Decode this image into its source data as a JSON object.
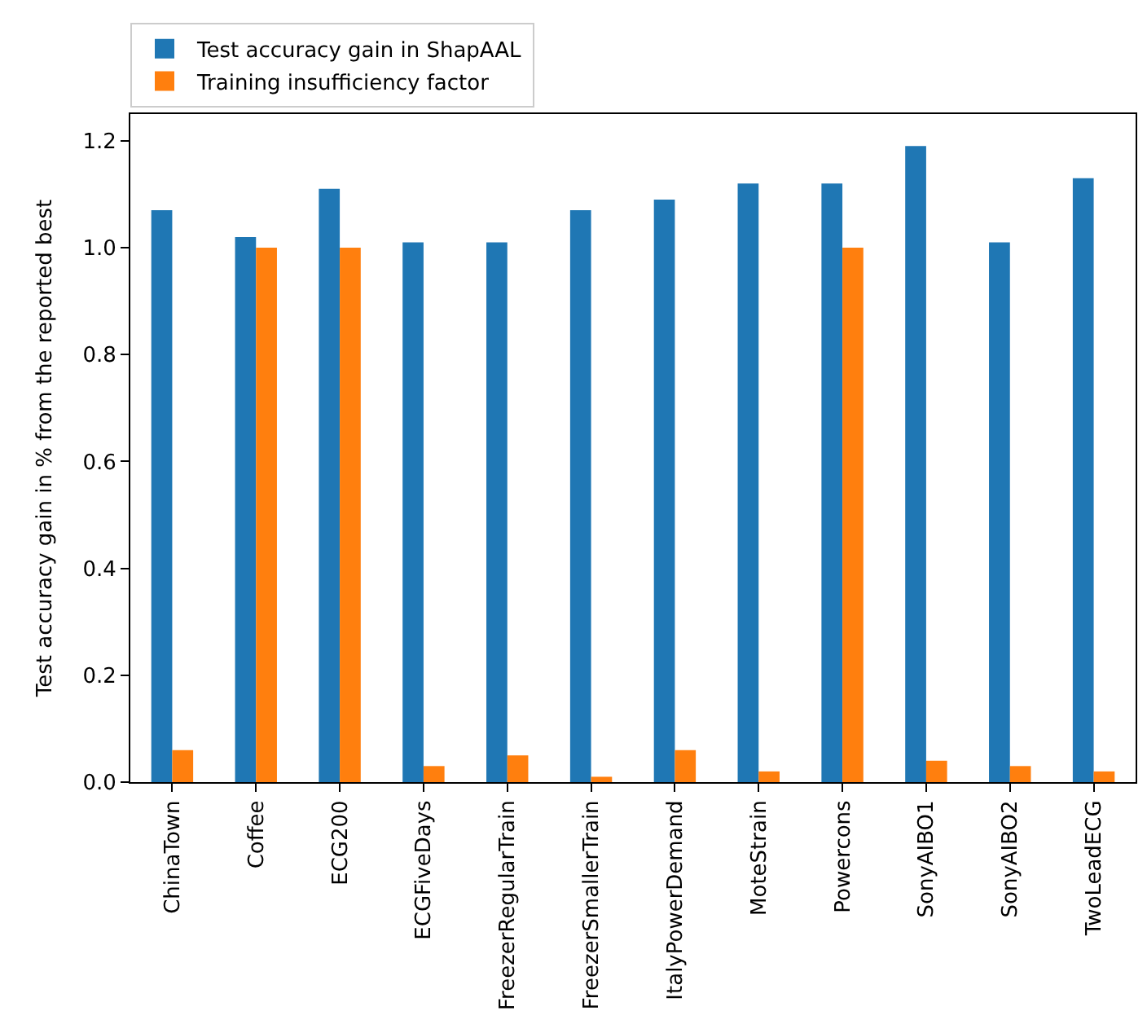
{
  "chart_data": {
    "type": "bar",
    "ylabel": "Test accuracy gain in % from the reported best",
    "categories": [
      "ChinaTown",
      "Coffee",
      "ECG200",
      "ECGFiveDays",
      "FreezerRegularTrain",
      "FreezerSmallerTrain",
      "ItalyPowerDemand",
      "MoteStrain",
      "Powercons",
      "SonyAIBO1",
      "SonyAIBO2",
      "TwoLeadECG"
    ],
    "series": [
      {
        "name": "Test accuracy gain in ShapAAL",
        "color": "#1f77b4",
        "values": [
          1.07,
          1.02,
          1.11,
          1.01,
          1.01,
          1.07,
          1.09,
          1.12,
          1.12,
          1.19,
          1.01,
          1.13
        ]
      },
      {
        "name": "Training insufficiency factor",
        "color": "#ff7f0e",
        "values": [
          0.06,
          1.0,
          1.0,
          0.03,
          0.05,
          0.01,
          0.06,
          0.02,
          1.0,
          0.04,
          0.03,
          0.02
        ]
      }
    ],
    "ylim": [
      0,
      1.25
    ],
    "yticks": [
      {
        "value": 0,
        "label": "0.0"
      },
      0.2,
      0.4,
      0.6,
      0.8,
      {
        "value": 1,
        "label": "1.0"
      },
      1.2
    ],
    "legend": "top left"
  }
}
